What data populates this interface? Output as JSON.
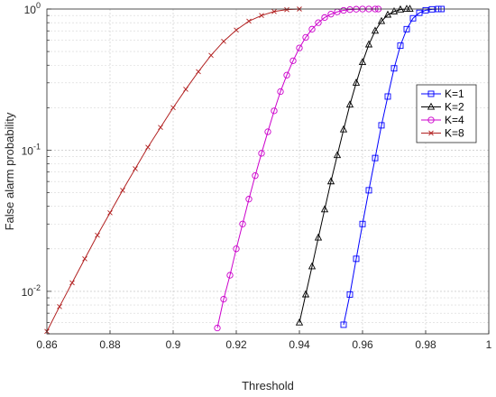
{
  "chart_data": {
    "type": "line",
    "title": "",
    "xlabel": "Threshold",
    "ylabel": "False alarm probability",
    "xlim": [
      0.86,
      1.0
    ],
    "ylim": [
      0.005,
      1.0
    ],
    "yscale": "log",
    "grid": true,
    "legend_position": "right",
    "x_ticks": [
      0.86,
      0.88,
      0.9,
      0.92,
      0.94,
      0.96,
      0.98,
      1.0
    ],
    "x_tick_labels": [
      "0.86",
      "0.88",
      "0.9",
      "0.92",
      "0.94",
      "0.96",
      "0.98",
      "1"
    ],
    "y_tick_labels": [
      {
        "base": "10",
        "exp": "-2",
        "value": 0.01
      },
      {
        "base": "10",
        "exp": "-1",
        "value": 0.1
      },
      {
        "base": "10",
        "exp": "0",
        "value": 1
      }
    ],
    "series": [
      {
        "name": "K=1",
        "color": "#0000ff",
        "marker": "square",
        "x": [
          0.954,
          0.956,
          0.958,
          0.96,
          0.962,
          0.964,
          0.966,
          0.968,
          0.97,
          0.972,
          0.974,
          0.976,
          0.978,
          0.98,
          0.982,
          0.984,
          0.985
        ],
        "y": [
          0.0058,
          0.0095,
          0.017,
          0.03,
          0.052,
          0.088,
          0.15,
          0.24,
          0.38,
          0.55,
          0.72,
          0.86,
          0.94,
          0.98,
          0.995,
          1.0,
          1.0
        ]
      },
      {
        "name": "K=2",
        "color": "#000000",
        "marker": "triangle",
        "x": [
          0.94,
          0.942,
          0.944,
          0.946,
          0.948,
          0.95,
          0.952,
          0.954,
          0.956,
          0.958,
          0.96,
          0.962,
          0.964,
          0.966,
          0.968,
          0.97,
          0.972,
          0.974,
          0.975
        ],
        "y": [
          0.006,
          0.0095,
          0.015,
          0.024,
          0.038,
          0.06,
          0.092,
          0.14,
          0.21,
          0.3,
          0.42,
          0.56,
          0.7,
          0.82,
          0.91,
          0.96,
          0.99,
          1.0,
          1.0
        ]
      },
      {
        "name": "K=4",
        "color": "#cc00cc",
        "marker": "circle",
        "x": [
          0.914,
          0.916,
          0.918,
          0.92,
          0.922,
          0.924,
          0.926,
          0.928,
          0.93,
          0.932,
          0.934,
          0.936,
          0.938,
          0.94,
          0.942,
          0.944,
          0.946,
          0.948,
          0.95,
          0.952,
          0.954,
          0.956,
          0.958,
          0.96,
          0.962,
          0.964,
          0.965
        ],
        "y": [
          0.0055,
          0.0088,
          0.013,
          0.02,
          0.03,
          0.045,
          0.066,
          0.095,
          0.135,
          0.19,
          0.26,
          0.34,
          0.43,
          0.53,
          0.63,
          0.72,
          0.8,
          0.87,
          0.92,
          0.955,
          0.978,
          0.99,
          0.997,
          1.0,
          1.0,
          1.0,
          1.0
        ]
      },
      {
        "name": "K=8",
        "color": "#b22222",
        "marker": "x",
        "x": [
          0.86,
          0.864,
          0.868,
          0.872,
          0.876,
          0.88,
          0.884,
          0.888,
          0.892,
          0.896,
          0.9,
          0.904,
          0.908,
          0.912,
          0.916,
          0.92,
          0.924,
          0.928,
          0.932,
          0.936,
          0.94
        ],
        "y": [
          0.0052,
          0.0078,
          0.0115,
          0.017,
          0.025,
          0.036,
          0.052,
          0.074,
          0.105,
          0.145,
          0.2,
          0.27,
          0.36,
          0.47,
          0.59,
          0.71,
          0.82,
          0.9,
          0.96,
          0.99,
          1.0
        ]
      }
    ]
  }
}
